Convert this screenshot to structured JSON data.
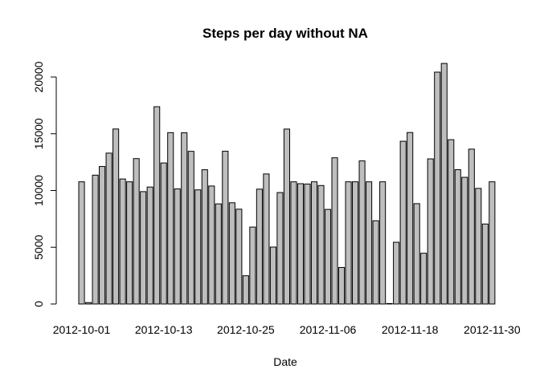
{
  "chart_data": {
    "type": "bar",
    "title": "Steps per day without NA",
    "xlabel": "Date",
    "ylabel": "",
    "ylim": [
      0,
      21500
    ],
    "yticks": [
      0,
      5000,
      10000,
      15000,
      20000
    ],
    "grid": false,
    "bar_color": "#bebebe",
    "categories": [
      "2012-10-01",
      "2012-10-02",
      "2012-10-03",
      "2012-10-04",
      "2012-10-05",
      "2012-10-06",
      "2012-10-07",
      "2012-10-08",
      "2012-10-09",
      "2012-10-10",
      "2012-10-11",
      "2012-10-12",
      "2012-10-13",
      "2012-10-14",
      "2012-10-15",
      "2012-10-16",
      "2012-10-17",
      "2012-10-18",
      "2012-10-19",
      "2012-10-20",
      "2012-10-21",
      "2012-10-22",
      "2012-10-23",
      "2012-10-24",
      "2012-10-25",
      "2012-10-26",
      "2012-10-27",
      "2012-10-28",
      "2012-10-29",
      "2012-10-30",
      "2012-10-31",
      "2012-11-01",
      "2012-11-02",
      "2012-11-03",
      "2012-11-04",
      "2012-11-05",
      "2012-11-06",
      "2012-11-07",
      "2012-11-08",
      "2012-11-09",
      "2012-11-10",
      "2012-11-11",
      "2012-11-12",
      "2012-11-13",
      "2012-11-14",
      "2012-11-15",
      "2012-11-16",
      "2012-11-17",
      "2012-11-18",
      "2012-11-19",
      "2012-11-20",
      "2012-11-21",
      "2012-11-22",
      "2012-11-23",
      "2012-11-24",
      "2012-11-25",
      "2012-11-26",
      "2012-11-27",
      "2012-11-28",
      "2012-11-29",
      "2012-11-30"
    ],
    "xtick_labels": [
      "2012-10-01",
      "2012-10-13",
      "2012-10-25",
      "2012-11-06",
      "2012-11-18",
      "2012-11-30"
    ],
    "values": [
      10766,
      126,
      11352,
      12116,
      13294,
      15420,
      11015,
      10766,
      12811,
      9900,
      10304,
      17382,
      12426,
      15098,
      10139,
      15084,
      13452,
      10056,
      11829,
      10395,
      8821,
      13460,
      8918,
      8355,
      2492,
      6778,
      10119,
      11458,
      5018,
      9819,
      15414,
      10766,
      10600,
      10571,
      10766,
      10439,
      8334,
      12883,
      3219,
      10766,
      10766,
      12608,
      10765,
      7336,
      10766,
      41,
      5441,
      14339,
      15110,
      8841,
      4472,
      12787,
      20427,
      21194,
      14478,
      11834,
      11162,
      13646,
      10183,
      7047,
      10766
    ]
  }
}
